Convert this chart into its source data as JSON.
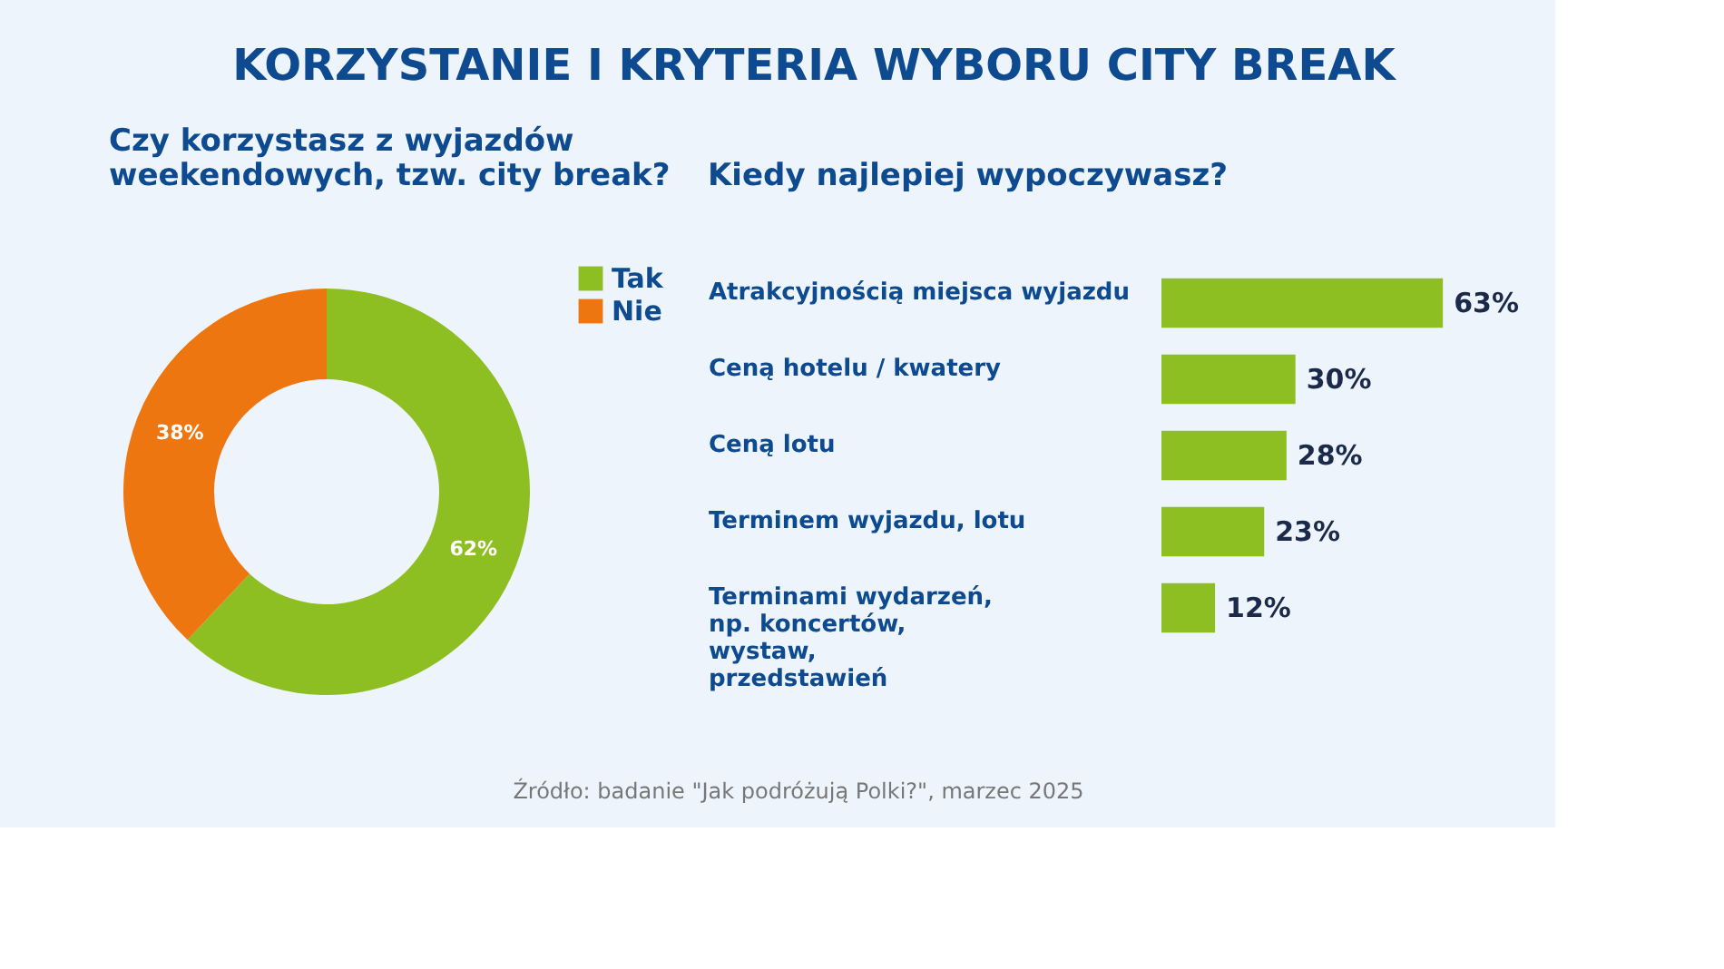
{
  "chart_data": [
    {
      "type": "donut",
      "title": "KORZYSTANIE I KRYTERIA WYBORU CITY BREAK",
      "subtitle": "Czy korzystasz z wyjazdów weekendowych, tzw. city break?",
      "categories": [
        "Tak",
        "Nie"
      ],
      "values": [
        62,
        38
      ],
      "colors": [
        "#8dbe22",
        "#ee7610"
      ],
      "value_labels": [
        "62%",
        "38%"
      ],
      "legend": "right"
    },
    {
      "type": "bar",
      "orientation": "horizontal",
      "title": "Kiedy najlepiej wypoczywasz?",
      "categories": [
        "Atrakcyjnością miejsca wyjazdu",
        "Ceną hotelu / kwatery",
        "Ceną lotu",
        "Terminem wyjazdu, lotu",
        "Terminami wydarzeń, np. koncertów, wystaw, przedstawień"
      ],
      "values": [
        63,
        30,
        28,
        23,
        12
      ],
      "color": "#8dbe22",
      "value_labels": [
        "63%",
        "30%",
        "28%",
        "23%",
        "12%"
      ],
      "annotations": [
        "Źródło: badanie \"Jak podróżują Polki?\", marzec 2025"
      ]
    }
  ]
}
